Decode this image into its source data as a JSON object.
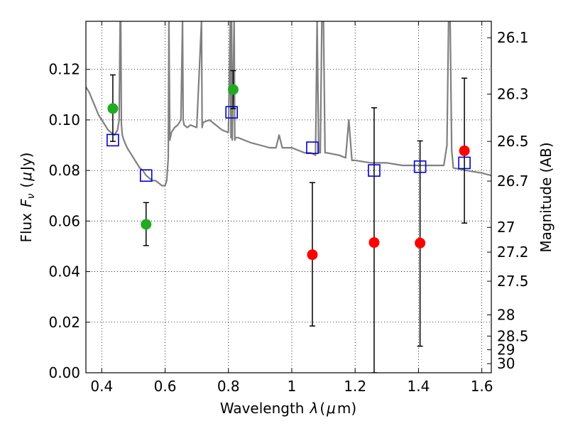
{
  "chart_data": {
    "type": "scatter",
    "title": "",
    "xlabel_parts": [
      "Wavelength",
      "λ",
      "(",
      "μ",
      "m)"
    ],
    "ylabel_parts": [
      "Flux",
      "F",
      "ν",
      "(",
      "μ",
      "Jy)"
    ],
    "y2label": "Magnitude (AB)",
    "xlim": [
      0.35,
      1.63
    ],
    "ylim": [
      0.0,
      0.139
    ],
    "grid": true,
    "x_ticks": [
      {
        "value": 0.4,
        "label": "0.4"
      },
      {
        "value": 0.6,
        "label": "0.6"
      },
      {
        "value": 0.8,
        "label": "0.8"
      },
      {
        "value": 1.0,
        "label": "1"
      },
      {
        "value": 1.2,
        "label": "1.2"
      },
      {
        "value": 1.4,
        "label": "1.4"
      },
      {
        "value": 1.6,
        "label": "1.6"
      }
    ],
    "y_ticks": [
      {
        "value": 0.0,
        "label": "0.00"
      },
      {
        "value": 0.02,
        "label": "0.02"
      },
      {
        "value": 0.04,
        "label": "0.04"
      },
      {
        "value": 0.06,
        "label": "0.06"
      },
      {
        "value": 0.08,
        "label": "0.08"
      },
      {
        "value": 0.1,
        "label": "0.10"
      },
      {
        "value": 0.12,
        "label": "0.12"
      }
    ],
    "y2_ticks": [
      {
        "flux": 0.1325,
        "label": "26.1"
      },
      {
        "flux": 0.1102,
        "label": "26.3"
      },
      {
        "flux": 0.0915,
        "label": "26.5"
      },
      {
        "flux": 0.0758,
        "label": "26.7"
      },
      {
        "flux": 0.0575,
        "label": "27"
      },
      {
        "flux": 0.0477,
        "label": "27.2"
      },
      {
        "flux": 0.0362,
        "label": "27.5"
      },
      {
        "flux": 0.0229,
        "label": "28"
      },
      {
        "flux": 0.0145,
        "label": "28.5"
      },
      {
        "flux": 0.0091,
        "label": "29"
      },
      {
        "flux": 0.0036,
        "label": "30"
      }
    ],
    "series": [
      {
        "kind": "model_spectrum",
        "color": "#808080",
        "x": [
          0.35,
          0.36,
          0.37,
          0.38,
          0.39,
          0.4,
          0.41,
          0.42,
          0.43,
          0.44,
          0.45,
          0.455,
          0.458,
          0.46,
          0.462,
          0.465,
          0.47,
          0.48,
          0.49,
          0.5,
          0.51,
          0.52,
          0.53,
          0.54,
          0.55,
          0.56,
          0.57,
          0.58,
          0.59,
          0.6,
          0.605,
          0.61,
          0.612,
          0.615,
          0.62,
          0.63,
          0.64,
          0.65,
          0.655,
          0.657,
          0.66,
          0.67,
          0.68,
          0.7,
          0.715,
          0.717,
          0.72,
          0.74,
          0.76,
          0.78,
          0.8,
          0.806,
          0.808,
          0.81,
          0.812,
          0.818,
          0.82,
          0.822,
          0.83,
          0.85,
          0.87,
          0.9,
          0.93,
          0.95,
          0.96,
          0.97,
          0.99,
          1.0,
          1.02,
          1.04,
          1.06,
          1.075,
          1.08,
          1.085,
          1.09,
          1.095,
          1.1,
          1.105,
          1.11,
          1.15,
          1.17,
          1.18,
          1.19,
          1.2,
          1.25,
          1.3,
          1.35,
          1.4,
          1.45,
          1.48,
          1.49,
          1.495,
          1.5,
          1.505,
          1.51,
          1.55,
          1.6,
          1.63
        ],
        "y": [
          0.113,
          0.111,
          0.108,
          0.105,
          0.102,
          0.1,
          0.098,
          0.096,
          0.095,
          0.094,
          0.096,
          0.1,
          0.139,
          0.139,
          0.098,
          0.094,
          0.092,
          0.089,
          0.087,
          0.085,
          0.083,
          0.081,
          0.08,
          0.078,
          0.077,
          0.076,
          0.076,
          0.075,
          0.074,
          0.074,
          0.076,
          0.085,
          0.139,
          0.092,
          0.095,
          0.097,
          0.098,
          0.1,
          0.139,
          0.1,
          0.098,
          0.097,
          0.098,
          0.097,
          0.139,
          0.097,
          0.099,
          0.1,
          0.098,
          0.096,
          0.095,
          0.139,
          0.093,
          0.139,
          0.092,
          0.139,
          0.092,
          0.093,
          0.093,
          0.092,
          0.091,
          0.09,
          0.089,
          0.089,
          0.094,
          0.089,
          0.089,
          0.089,
          0.088,
          0.087,
          0.087,
          0.086,
          0.139,
          0.087,
          0.087,
          0.139,
          0.139,
          0.087,
          0.087,
          0.086,
          0.085,
          0.1,
          0.084,
          0.084,
          0.083,
          0.083,
          0.082,
          0.082,
          0.082,
          0.082,
          0.09,
          0.139,
          0.139,
          0.088,
          0.081,
          0.08,
          0.079,
          0.078
        ]
      },
      {
        "kind": "model_photometry",
        "marker": "square",
        "color": "#0000cc",
        "x": [
          0.435,
          0.54,
          0.81,
          1.065,
          1.26,
          1.405,
          1.545
        ],
        "y": [
          0.092,
          0.078,
          0.103,
          0.089,
          0.08,
          0.0815,
          0.083
        ]
      },
      {
        "kind": "detections",
        "marker": "circle",
        "color": "#22aa22",
        "x": [
          0.435,
          0.54,
          0.815
        ],
        "y": [
          0.1045,
          0.0587,
          0.112
        ],
        "err_low": [
          0.0915,
          0.0503,
          0.1045
        ],
        "err_high": [
          0.1178,
          0.0673,
          0.1195
        ]
      },
      {
        "kind": "upper_limits",
        "marker": "circle",
        "color": "#ff0000",
        "x": [
          1.065,
          1.26,
          1.405,
          1.545
        ],
        "y": [
          0.0467,
          0.0515,
          0.0513,
          0.0878
        ],
        "err_low": [
          0.0185,
          0.0,
          0.0105,
          0.0592
        ],
        "err_high": [
          0.0752,
          0.1048,
          0.0917,
          0.1165
        ]
      }
    ]
  }
}
